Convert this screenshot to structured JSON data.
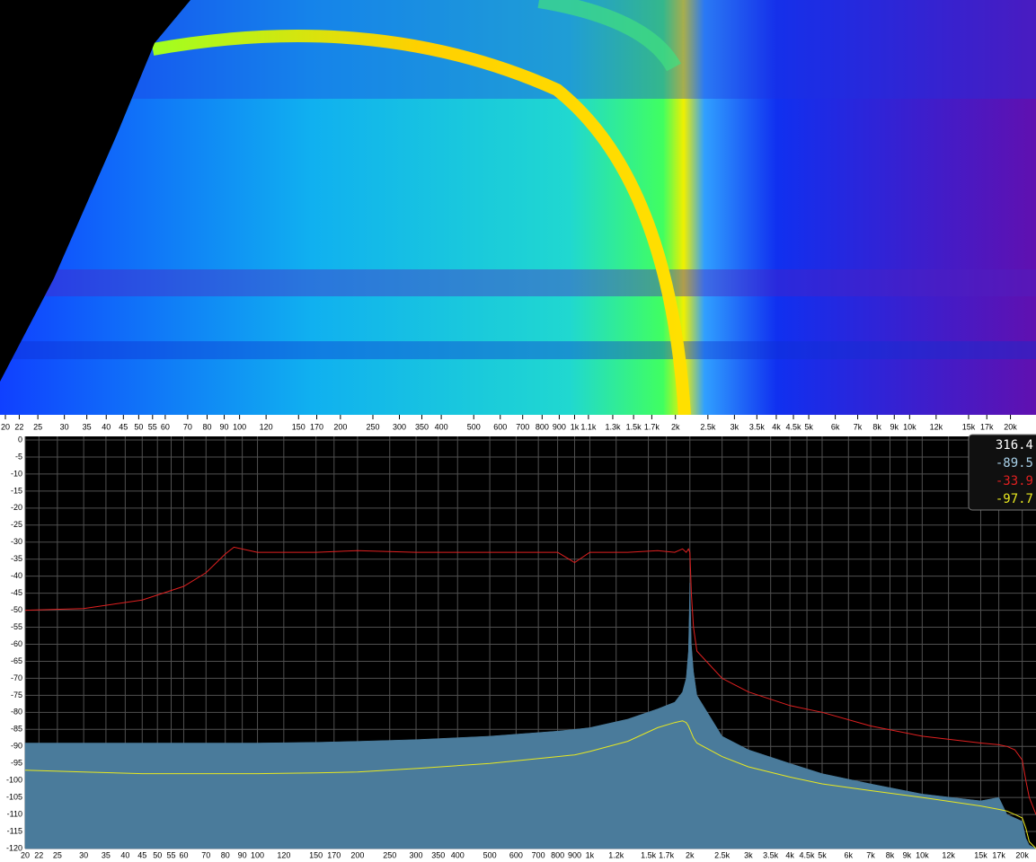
{
  "chart_data": {
    "type": "spectrum",
    "x": [
      20,
      30,
      45,
      60,
      70,
      80,
      85,
      100,
      150,
      200,
      300,
      500,
      800,
      900,
      1000,
      1300,
      1600,
      1800,
      1900,
      1950,
      1980,
      2000,
      2020,
      2050,
      2100,
      2500,
      3000,
      4000,
      5000,
      7000,
      10000,
      15000,
      17000,
      18000,
      19000,
      20000,
      20500,
      21000,
      22000
    ],
    "series": [
      {
        "color": "#4a7b9b",
        "fill": true,
        "values": [
          -89,
          -89,
          -89,
          -89,
          -89,
          -89,
          -89,
          -89,
          -88.8,
          -88.5,
          -88,
          -87,
          -85.5,
          -85,
          -84.5,
          -82,
          -79,
          -77,
          -74,
          -70,
          -62,
          -42,
          -60,
          -68,
          -75,
          -87,
          -91,
          -95,
          -98,
          -101,
          -104,
          -106,
          -105,
          -110,
          -111,
          -112,
          -117,
          -119,
          -120
        ]
      },
      {
        "color": "#e02020",
        "fill": false,
        "values": [
          -50,
          -49.5,
          -47,
          -43,
          -39,
          -33.5,
          -31.5,
          -33,
          -33,
          -32.5,
          -33,
          -33,
          -33,
          -36,
          -33,
          -33,
          -32.5,
          -33,
          -32,
          -33,
          -32,
          -33,
          -45,
          -55,
          -62,
          -70,
          -74,
          -78,
          -80,
          -84,
          -87,
          -89,
          -89.5,
          -90,
          -91,
          -94,
          -100,
          -105,
          -110
        ]
      },
      {
        "color": "#e8e820",
        "fill": false,
        "values": [
          -97,
          -97.5,
          -98,
          -98,
          -98,
          -98,
          -98,
          -98,
          -97.8,
          -97.5,
          -96.5,
          -95,
          -93,
          -92.5,
          -91.5,
          -88.5,
          -84.5,
          -83,
          -82.5,
          -83,
          -84,
          -85,
          -86,
          -87.5,
          -89,
          -93,
          -96,
          -99,
          -101,
          -103,
          -105,
          -107.5,
          -108.5,
          -109,
          -110,
          -111,
          -114,
          -118,
          -120
        ]
      }
    ],
    "xlim": [
      20,
      22000
    ],
    "log_x": true,
    "ylim": [
      -120,
      0
    ],
    "grid": true,
    "yticks": [
      0,
      -5,
      -10,
      -15,
      -20,
      -25,
      -30,
      -35,
      -40,
      -45,
      -50,
      -55,
      -60,
      -65,
      -70,
      -75,
      -80,
      -85,
      -90,
      -95,
      -100,
      -105,
      -110,
      -115,
      -120
    ],
    "xticks": [
      20,
      22,
      25,
      30,
      35,
      40,
      45,
      50,
      55,
      60,
      70,
      80,
      90,
      100,
      120,
      150,
      170,
      200,
      250,
      300,
      350,
      400,
      500,
      600,
      700,
      800,
      900,
      {
        "value": 1000,
        "label": "1k"
      },
      {
        "value": 1200,
        "label": "1.2k"
      },
      {
        "value": 1500,
        "label": "1.5k"
      },
      {
        "value": 1700,
        "label": "1.7k"
      },
      {
        "value": 2000,
        "label": "2k"
      },
      {
        "value": 2500,
        "label": "2.5k"
      },
      {
        "value": 3000,
        "label": "3k"
      },
      {
        "value": 3500,
        "label": "3.5k"
      },
      {
        "value": 4000,
        "label": "4k"
      },
      {
        "value": 4500,
        "label": "4.5k"
      },
      {
        "value": 5000,
        "label": "5k"
      },
      {
        "value": 6000,
        "label": "6k"
      },
      {
        "value": 7000,
        "label": "7k"
      },
      {
        "value": 8000,
        "label": "8k"
      },
      {
        "value": 9000,
        "label": "9k"
      },
      {
        "value": 10000,
        "label": "10k"
      },
      {
        "value": 12000,
        "label": "12k"
      },
      {
        "value": 15000,
        "label": "15k"
      },
      {
        "value": 17000,
        "label": "17k"
      },
      {
        "value": 20000,
        "label": "20k"
      }
    ],
    "top_xticks": [
      20,
      22,
      25,
      30,
      35,
      40,
      45,
      50,
      55,
      60,
      70,
      80,
      90,
      100,
      120,
      150,
      170,
      200,
      250,
      300,
      350,
      400,
      500,
      600,
      700,
      800,
      900,
      {
        "value": 1000,
        "label": "1k"
      },
      {
        "value": 1100,
        "label": "1.1k"
      },
      {
        "value": 1300,
        "label": "1.3k"
      },
      {
        "value": 1500,
        "label": "1.5k"
      },
      {
        "value": 1700,
        "label": "1.7k"
      },
      {
        "value": 2000,
        "label": "2k"
      },
      {
        "value": 2500,
        "label": "2.5k"
      },
      {
        "value": 3000,
        "label": "3k"
      },
      {
        "value": 3500,
        "label": "3.5k"
      },
      {
        "value": 4000,
        "label": "4k"
      },
      {
        "value": 4500,
        "label": "4.5k"
      },
      {
        "value": 5000,
        "label": "5k"
      },
      {
        "value": 6000,
        "label": "6k"
      },
      {
        "value": 7000,
        "label": "7k"
      },
      {
        "value": 8000,
        "label": "8k"
      },
      {
        "value": 9000,
        "label": "9k"
      },
      {
        "value": 10000,
        "label": "10k"
      },
      {
        "value": 12000,
        "label": "12k"
      },
      {
        "value": 15000,
        "label": "15k"
      },
      {
        "value": 17000,
        "label": "17k"
      },
      {
        "value": 20000,
        "label": "20k"
      }
    ],
    "readout": [
      "316.4",
      "-89.5",
      "-33.9",
      "-97.7"
    ]
  }
}
